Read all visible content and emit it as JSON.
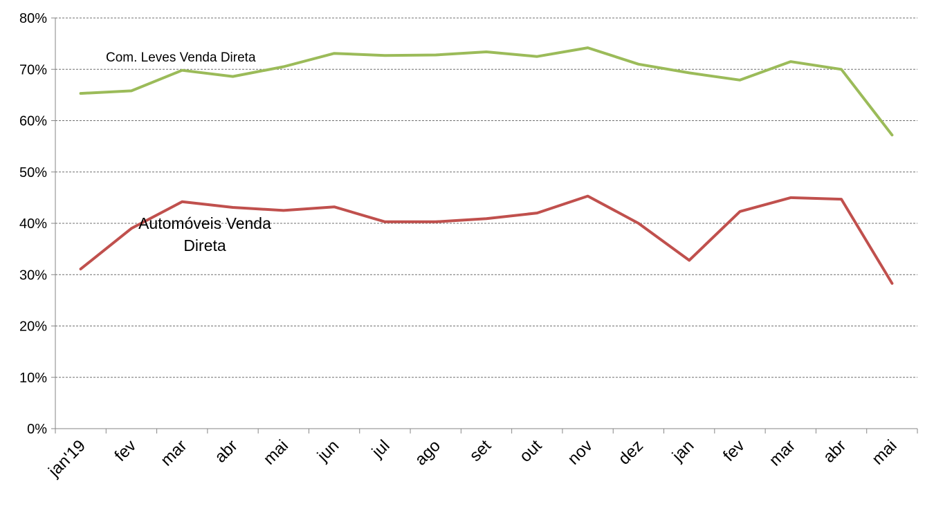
{
  "chart_data": {
    "type": "line",
    "categories": [
      "jan'19",
      "fev",
      "mar",
      "abr",
      "mai",
      "jun",
      "jul",
      "ago",
      "set",
      "out",
      "nov",
      "dez",
      "jan",
      "fev",
      "mar",
      "abr",
      "mai"
    ],
    "ylim": [
      0,
      80
    ],
    "yticks": [
      "0%",
      "10%",
      "20%",
      "30%",
      "40%",
      "50%",
      "60%",
      "70%",
      "80%"
    ],
    "grid": true,
    "series": [
      {
        "name": "Com. Leves Venda Direta",
        "color": "#9BBB59",
        "values": [
          65.3,
          65.8,
          69.8,
          68.6,
          70.5,
          73.1,
          72.7,
          72.8,
          73.4,
          72.5,
          74.2,
          71.0,
          69.3,
          67.9,
          71.5,
          70.0,
          57.2
        ]
      },
      {
        "name": "Automóveis Venda Direta",
        "label_lines": [
          "Automóveis Venda",
          "Direta"
        ],
        "color": "#C0504D",
        "values": [
          31.1,
          39.0,
          44.2,
          43.1,
          42.5,
          43.2,
          40.3,
          40.3,
          40.9,
          42.0,
          45.3,
          40.0,
          32.8,
          42.3,
          45.0,
          44.7,
          28.3
        ]
      }
    ]
  }
}
